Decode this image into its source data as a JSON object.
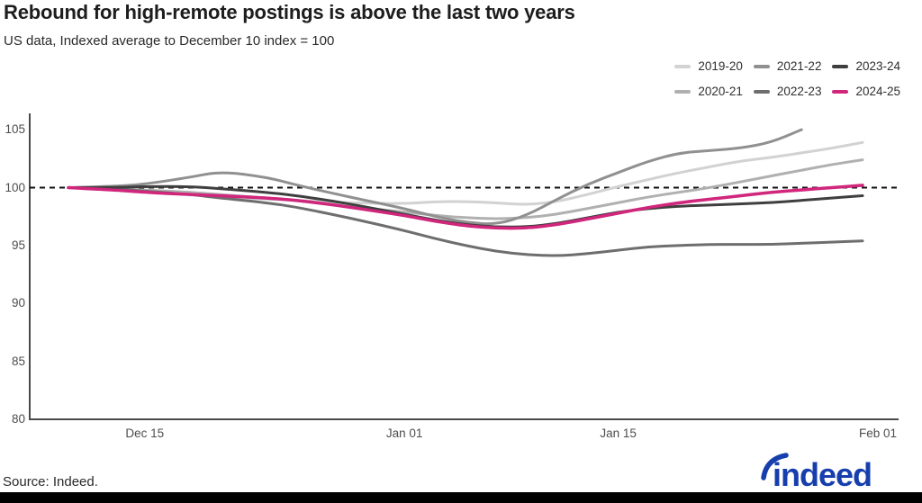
{
  "header": {
    "title": "Rebound for high-remote postings is above the last two years",
    "subtitle": "US data, Indexed average to December 10 index = 100"
  },
  "footer": {
    "source": "Source: Indeed.",
    "logo_text": "indeed",
    "logo_color": "#163fad"
  },
  "chart_data": {
    "type": "line",
    "title": "Rebound for high-remote postings is above the last two years",
    "subtitle": "US data, Indexed average to December 10 index = 100",
    "xlabel": "",
    "ylabel": "",
    "ylim": [
      80,
      106.5
    ],
    "y_ticks": [
      105,
      100,
      95,
      90,
      85,
      80
    ],
    "x_ticks": [
      {
        "label": "Dec 15",
        "day": 5
      },
      {
        "label": "Jan 01",
        "day": 22
      },
      {
        "label": "Jan 15",
        "day": 36
      },
      {
        "label": "Feb 01",
        "day": 53
      }
    ],
    "grid": false,
    "legend_position": "top-right",
    "reference_line": {
      "value": 100,
      "style": "dashed",
      "color": "#111111"
    },
    "x_unit": "days since Dec 10",
    "dates": [
      "Dec 10",
      "Dec 13",
      "Dec 15",
      "Dec 18",
      "Dec 20",
      "Dec 23",
      "Dec 25",
      "Dec 28",
      "Jan 1",
      "Jan 3",
      "Jan 5",
      "Jan 7",
      "Jan 9",
      "Jan 11",
      "Jan 13",
      "Jan 15",
      "Jan 17",
      "Jan 19",
      "Jan 21",
      "Jan 23",
      "Jan 25",
      "Jan 27",
      "Jan 29",
      "Jan 31"
    ],
    "days": [
      0,
      3,
      5,
      8,
      10,
      13,
      15,
      18,
      22,
      24,
      26,
      28,
      30,
      32,
      34,
      36,
      38,
      40,
      42,
      44,
      46,
      48,
      50,
      52
    ],
    "series": [
      {
        "name": "2019-20",
        "color": "#d2d2d2",
        "emphasis": false,
        "values": [
          100,
          99.9,
          99.7,
          99.5,
          99.2,
          99.0,
          98.9,
          98.7,
          98.6,
          98.8,
          98.8,
          98.7,
          98.5,
          98.8,
          99.4,
          100.1,
          100.7,
          101.3,
          101.8,
          102.3,
          102.6,
          103.0,
          103.4,
          103.9
        ]
      },
      {
        "name": "2020-21",
        "color": "#b0b0b0",
        "emphasis": false,
        "values": [
          100,
          99.9,
          99.8,
          99.6,
          99.4,
          99.1,
          98.9,
          98.4,
          97.9,
          97.6,
          97.4,
          97.3,
          97.4,
          97.7,
          98.2,
          98.7,
          99.2,
          99.6,
          100.0,
          100.5,
          101.0,
          101.5,
          102.0,
          102.4
        ]
      },
      {
        "name": "2021-22",
        "color": "#909090",
        "emphasis": false,
        "values": [
          100,
          100.1,
          100.3,
          100.9,
          101.4,
          100.9,
          100.2,
          99.3,
          98.2,
          97.5,
          97.0,
          96.8,
          97.6,
          99.0,
          100.3,
          101.3,
          102.3,
          103.0,
          103.2,
          103.4,
          103.9,
          105.0,
          null,
          null
        ]
      },
      {
        "name": "2022-23",
        "color": "#6e6e6e",
        "emphasis": false,
        "values": [
          100,
          99.9,
          99.7,
          99.4,
          99.1,
          98.7,
          98.3,
          97.5,
          96.3,
          95.6,
          95.0,
          94.5,
          94.2,
          94.1,
          94.3,
          94.6,
          94.9,
          95.0,
          95.1,
          95.1,
          95.1,
          95.2,
          95.3,
          95.4
        ]
      },
      {
        "name": "2023-24",
        "color": "#3f3f3f",
        "emphasis": false,
        "values": [
          100,
          100.0,
          100.1,
          100.1,
          99.9,
          99.6,
          99.3,
          98.7,
          97.7,
          97.2,
          96.8,
          96.6,
          96.6,
          96.9,
          97.4,
          97.9,
          98.2,
          98.4,
          98.5,
          98.6,
          98.7,
          98.9,
          99.1,
          99.3
        ]
      },
      {
        "name": "2024-25",
        "color": "#d0267c",
        "emphasis": true,
        "values": [
          100,
          99.8,
          99.6,
          99.4,
          99.3,
          99.1,
          98.9,
          98.4,
          97.6,
          97.1,
          96.7,
          96.5,
          96.5,
          96.8,
          97.3,
          97.8,
          98.3,
          98.7,
          99.0,
          99.3,
          99.6,
          99.8,
          100.0,
          100.2
        ]
      }
    ]
  }
}
